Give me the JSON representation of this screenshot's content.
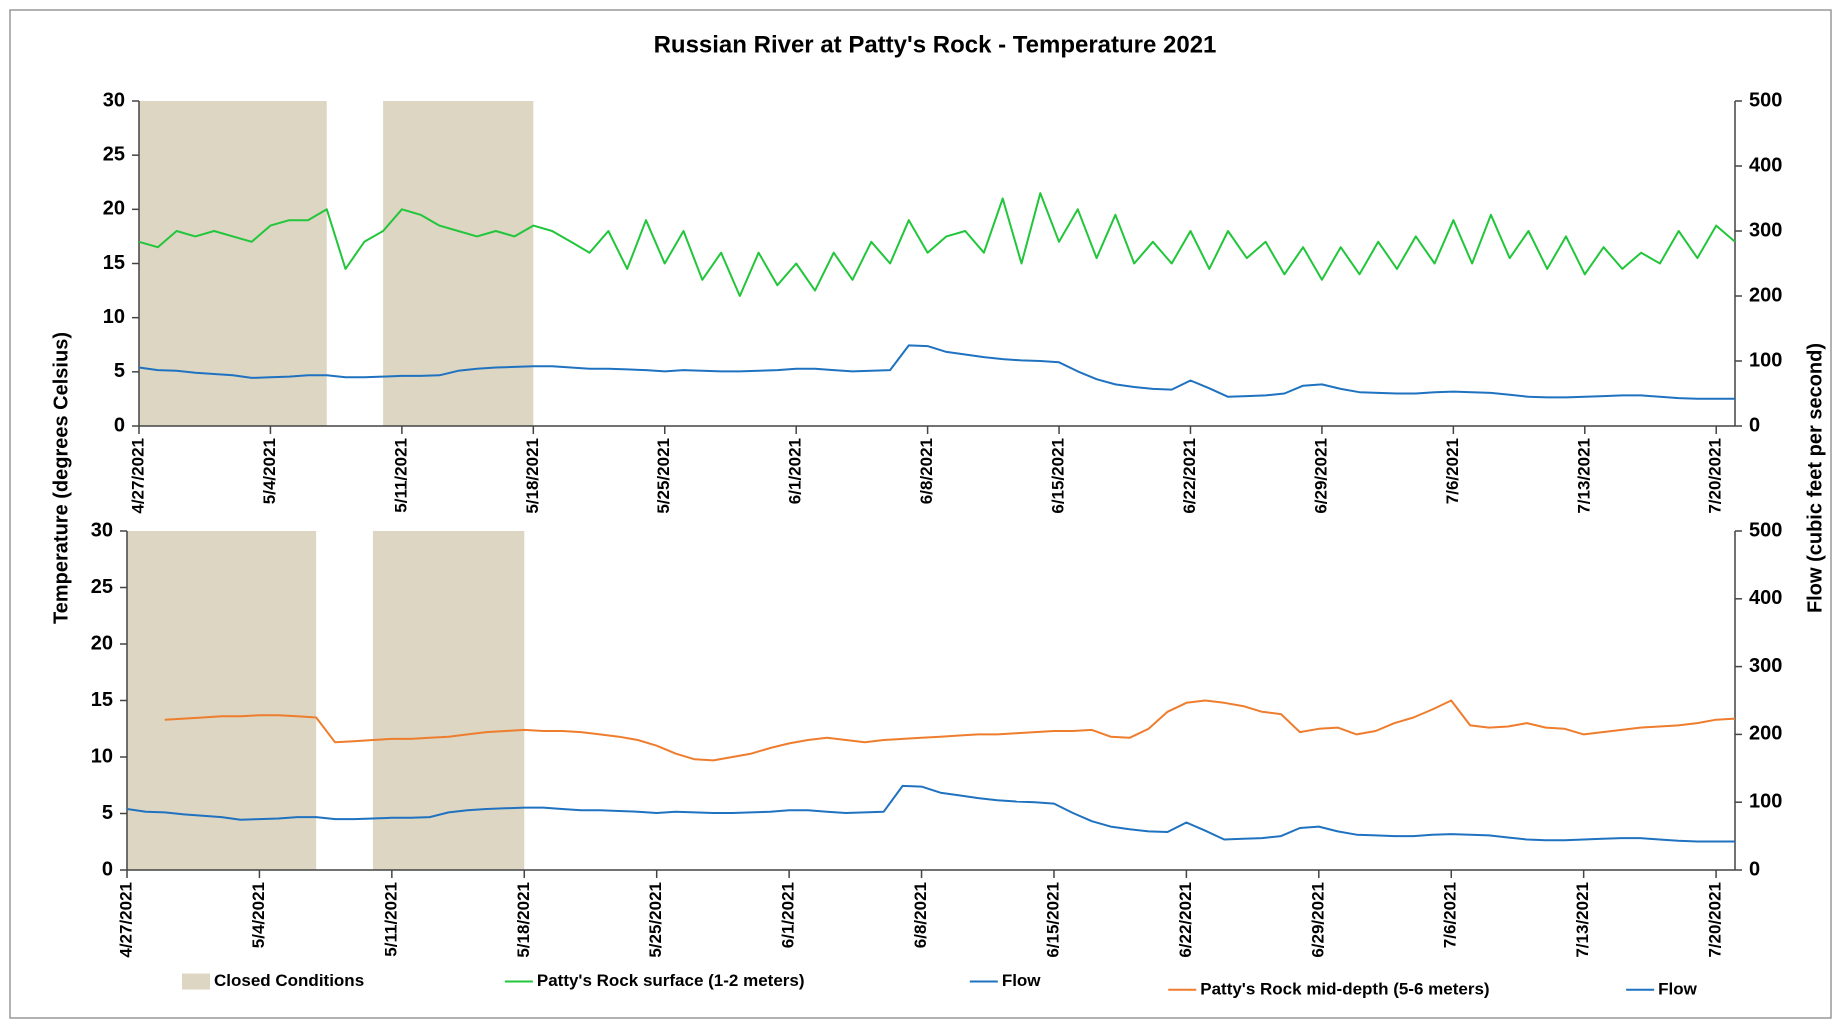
{
  "chart_data": [
    {
      "type": "line",
      "title": "Russian River at Patty's Rock - Temperature 2021",
      "ylabel": "Temperature (degrees Celsius)",
      "y2label": "Flow (cubic feet per second)",
      "xlim": [
        "4/27/2021",
        "7/21/2021"
      ],
      "xticks": [
        "4/27/2021",
        "5/4/2021",
        "5/11/2021",
        "5/18/2021",
        "5/25/2021",
        "6/1/2021",
        "6/8/2021",
        "6/15/2021",
        "6/22/2021",
        "6/29/2021",
        "7/6/2021",
        "7/13/2021",
        "7/20/2021"
      ],
      "ylim": [
        0,
        30
      ],
      "yticks": [
        0,
        5,
        10,
        15,
        20,
        25,
        30
      ],
      "y2lim": [
        0,
        500
      ],
      "y2ticks": [
        0,
        100,
        200,
        300,
        400,
        500
      ],
      "bands": {
        "name": "Closed Conditions",
        "color": "#ddd6c3",
        "ranges": [
          [
            "4/27/2021",
            "5/7/2021"
          ],
          [
            "5/10/2021",
            "5/18/2021"
          ]
        ]
      },
      "x": [
        "4/27/2021",
        "4/28/2021",
        "4/29/2021",
        "4/30/2021",
        "5/1/2021",
        "5/2/2021",
        "5/3/2021",
        "5/4/2021",
        "5/5/2021",
        "5/6/2021",
        "5/7/2021",
        "5/8/2021",
        "5/9/2021",
        "5/10/2021",
        "5/11/2021",
        "5/12/2021",
        "5/13/2021",
        "5/14/2021",
        "5/15/2021",
        "5/16/2021",
        "5/17/2021",
        "5/18/2021",
        "5/19/2021",
        "5/20/2021",
        "5/21/2021",
        "5/22/2021",
        "5/23/2021",
        "5/24/2021",
        "5/25/2021",
        "5/26/2021",
        "5/27/2021",
        "5/28/2021",
        "5/29/2021",
        "5/30/2021",
        "5/31/2021",
        "6/1/2021",
        "6/2/2021",
        "6/3/2021",
        "6/4/2021",
        "6/5/2021",
        "6/6/2021",
        "6/7/2021",
        "6/8/2021",
        "6/9/2021",
        "6/10/2021",
        "6/11/2021",
        "6/12/2021",
        "6/13/2021",
        "6/14/2021",
        "6/15/2021",
        "6/16/2021",
        "6/17/2021",
        "6/18/2021",
        "6/19/2021",
        "6/20/2021",
        "6/21/2021",
        "6/22/2021",
        "6/23/2021",
        "6/24/2021",
        "6/25/2021",
        "6/26/2021",
        "6/27/2021",
        "6/28/2021",
        "6/29/2021",
        "6/30/2021",
        "7/1/2021",
        "7/2/2021",
        "7/3/2021",
        "7/4/2021",
        "7/5/2021",
        "7/6/2021",
        "7/7/2021",
        "7/8/2021",
        "7/9/2021",
        "7/10/2021",
        "7/11/2021",
        "7/12/2021",
        "7/13/2021",
        "7/14/2021",
        "7/15/2021",
        "7/16/2021",
        "7/17/2021",
        "7/18/2021",
        "7/19/2021",
        "7/20/2021",
        "7/21/2021"
      ],
      "series": [
        {
          "name": "Patty's Rock surface (1-2 meters)",
          "color": "#21c63a",
          "axis": "y",
          "values": [
            17,
            16.5,
            18,
            17.5,
            18,
            17.5,
            17,
            18.5,
            19,
            19,
            20,
            14.5,
            17,
            18,
            20,
            19.5,
            18.5,
            18,
            17.5,
            18,
            17.5,
            18.5,
            18,
            17,
            16,
            18,
            14.5,
            19,
            15,
            18,
            13.5,
            16,
            12,
            16,
            13,
            15,
            12.5,
            16,
            13.5,
            17,
            15,
            19,
            16,
            17.5,
            18,
            16,
            21,
            15,
            21.5,
            17,
            20,
            15.5,
            19.5,
            15,
            17,
            15,
            18,
            14.5,
            18,
            15.5,
            17,
            14,
            16.5,
            13.5,
            16.5,
            14,
            17,
            14.5,
            17.5,
            15,
            19,
            15,
            19.5,
            15.5,
            18,
            14.5,
            17.5,
            14,
            16.5,
            14.5,
            16,
            15,
            18,
            15.5,
            18.5,
            17
          ]
        },
        {
          "name": "Flow",
          "color": "#1f72c0",
          "axis": "y2",
          "values": [
            90,
            86,
            85,
            82,
            80,
            78,
            74,
            75,
            76,
            78,
            78,
            75,
            75,
            76,
            77,
            77,
            78,
            85,
            88,
            90,
            91,
            92,
            92,
            90,
            88,
            88,
            87,
            86,
            84,
            86,
            85,
            84,
            84,
            85,
            86,
            88,
            88,
            86,
            84,
            85,
            86,
            124,
            123,
            114,
            110,
            106,
            103,
            101,
            100,
            98,
            84,
            72,
            64,
            60,
            57,
            56,
            70,
            58,
            45,
            46,
            47,
            50,
            62,
            64,
            57,
            52,
            51,
            50,
            50,
            52,
            53,
            52,
            51,
            48,
            45,
            44,
            44,
            45,
            46,
            47,
            47,
            45,
            43,
            42,
            42,
            42
          ]
        }
      ]
    },
    {
      "type": "line",
      "xlim": [
        "4/27/2021",
        "7/21/2021"
      ],
      "xticks": [
        "4/27/2021",
        "5/4/2021",
        "5/11/2021",
        "5/18/2021",
        "5/25/2021",
        "6/1/2021",
        "6/8/2021",
        "6/15/2021",
        "6/22/2021",
        "6/29/2021",
        "7/6/2021",
        "7/13/2021",
        "7/20/2021"
      ],
      "ylim": [
        0,
        30
      ],
      "yticks": [
        0,
        5,
        10,
        15,
        20,
        25,
        30
      ],
      "y2lim": [
        0,
        500
      ],
      "y2ticks": [
        0,
        100,
        200,
        300,
        400,
        500
      ],
      "bands": {
        "color": "#ddd6c3",
        "ranges": [
          [
            "4/27/2021",
            "5/7/2021"
          ],
          [
            "5/10/2021",
            "5/18/2021"
          ]
        ]
      },
      "x": [
        "4/27/2021",
        "4/28/2021",
        "4/29/2021",
        "4/30/2021",
        "5/1/2021",
        "5/2/2021",
        "5/3/2021",
        "5/4/2021",
        "5/5/2021",
        "5/6/2021",
        "5/7/2021",
        "5/8/2021",
        "5/9/2021",
        "5/10/2021",
        "5/11/2021",
        "5/12/2021",
        "5/13/2021",
        "5/14/2021",
        "5/15/2021",
        "5/16/2021",
        "5/17/2021",
        "5/18/2021",
        "5/19/2021",
        "5/20/2021",
        "5/21/2021",
        "5/22/2021",
        "5/23/2021",
        "5/24/2021",
        "5/25/2021",
        "5/26/2021",
        "5/27/2021",
        "5/28/2021",
        "5/29/2021",
        "5/30/2021",
        "5/31/2021",
        "6/1/2021",
        "6/2/2021",
        "6/3/2021",
        "6/4/2021",
        "6/5/2021",
        "6/6/2021",
        "6/7/2021",
        "6/8/2021",
        "6/9/2021",
        "6/10/2021",
        "6/11/2021",
        "6/12/2021",
        "6/13/2021",
        "6/14/2021",
        "6/15/2021",
        "6/16/2021",
        "6/17/2021",
        "6/18/2021",
        "6/19/2021",
        "6/20/2021",
        "6/21/2021",
        "6/22/2021",
        "6/23/2021",
        "6/24/2021",
        "6/25/2021",
        "6/26/2021",
        "6/27/2021",
        "6/28/2021",
        "6/29/2021",
        "6/30/2021",
        "7/1/2021",
        "7/2/2021",
        "7/3/2021",
        "7/4/2021",
        "7/5/2021",
        "7/6/2021",
        "7/7/2021",
        "7/8/2021",
        "7/9/2021",
        "7/10/2021",
        "7/11/2021",
        "7/12/2021",
        "7/13/2021",
        "7/14/2021",
        "7/15/2021",
        "7/16/2021",
        "7/17/2021",
        "7/18/2021",
        "7/19/2021",
        "7/20/2021",
        "7/21/2021"
      ],
      "series": [
        {
          "name": "Patty's Rock mid-depth (5-6 meters)",
          "color": "#ee7d2e",
          "axis": "y",
          "values": [
            null,
            null,
            13.3,
            13.4,
            13.5,
            13.6,
            13.6,
            13.7,
            13.7,
            13.6,
            13.5,
            11.3,
            11.4,
            11.5,
            11.6,
            11.6,
            11.7,
            11.8,
            12,
            12.2,
            12.3,
            12.4,
            12.3,
            12.3,
            12.2,
            12,
            11.8,
            11.5,
            11,
            10.3,
            9.8,
            9.7,
            10,
            10.3,
            10.8,
            11.2,
            11.5,
            11.7,
            11.5,
            11.3,
            11.5,
            11.6,
            11.7,
            11.8,
            11.9,
            12,
            12,
            12.1,
            12.2,
            12.3,
            12.3,
            12.4,
            11.8,
            11.7,
            12.5,
            14,
            14.8,
            15,
            14.8,
            14.5,
            14,
            13.8,
            12.2,
            12.5,
            12.6,
            12,
            12.3,
            13,
            13.5,
            14.2,
            15,
            12.8,
            12.6,
            12.7,
            13,
            12.6,
            12.5,
            12,
            12.2,
            12.4,
            12.6,
            12.7,
            12.8,
            13,
            13.3,
            13.4
          ]
        },
        {
          "name": "Flow",
          "color": "#1f72c0",
          "axis": "y2",
          "values": [
            90,
            86,
            85,
            82,
            80,
            78,
            74,
            75,
            76,
            78,
            78,
            75,
            75,
            76,
            77,
            77,
            78,
            85,
            88,
            90,
            91,
            92,
            92,
            90,
            88,
            88,
            87,
            86,
            84,
            86,
            85,
            84,
            84,
            85,
            86,
            88,
            88,
            86,
            84,
            85,
            86,
            124,
            123,
            114,
            110,
            106,
            103,
            101,
            100,
            98,
            84,
            72,
            64,
            60,
            57,
            56,
            70,
            58,
            45,
            46,
            47,
            50,
            62,
            64,
            57,
            52,
            51,
            50,
            50,
            52,
            53,
            52,
            51,
            48,
            45,
            44,
            44,
            45,
            46,
            47,
            47,
            45,
            43,
            42,
            42,
            42
          ]
        }
      ]
    }
  ]
}
